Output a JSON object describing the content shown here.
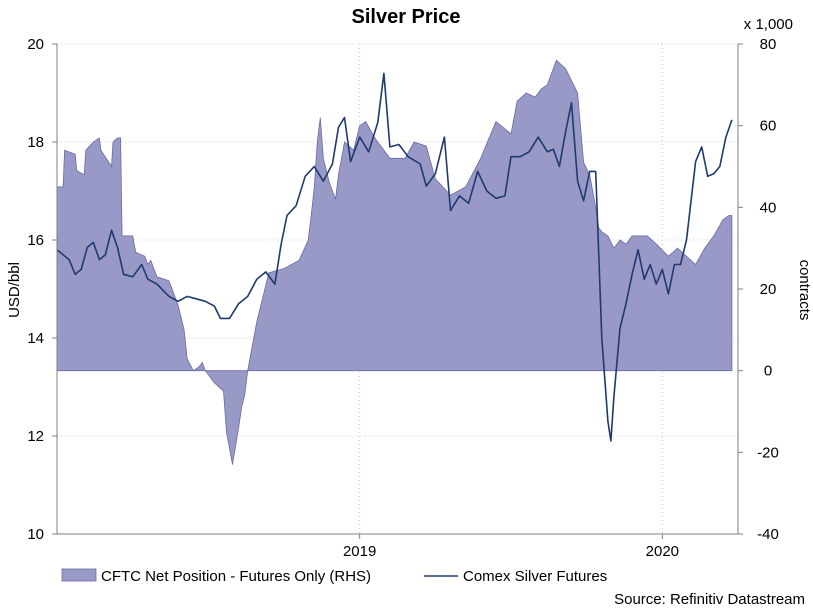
{
  "chart_data": {
    "type": "area+line",
    "title": "Silver Price",
    "left_axis": {
      "label": "USD/bbl",
      "range": [
        10,
        20
      ],
      "ticks": [
        "20",
        "18",
        "16",
        "14",
        "12",
        "10"
      ]
    },
    "right_axis": {
      "label": "contracts",
      "multiplier": "x 1,000",
      "range": [
        -40,
        80
      ],
      "ticks": [
        "80",
        "60",
        "40",
        "20",
        "0",
        "-20",
        "-40"
      ]
    },
    "x_axis": {
      "range": [
        2018.0,
        2020.25
      ],
      "ticks": [
        "2019",
        "2020"
      ]
    },
    "grid": "dotted",
    "source": "Source: Refinitiv Datastream",
    "colors": {
      "area_fill": "#9999c8",
      "area_stroke": "#6a6aa8",
      "line": "#1f3a6e",
      "axis": "#808080",
      "grid": "#c8c8c8"
    },
    "series": [
      {
        "name": "CFTC Net Position - Futures Only (RHS)",
        "axis": "right",
        "kind": "area",
        "points": [
          [
            2018.0,
            45
          ],
          [
            2018.02,
            45
          ],
          [
            2018.025,
            54
          ],
          [
            2018.06,
            53
          ],
          [
            2018.065,
            49
          ],
          [
            2018.09,
            48
          ],
          [
            2018.095,
            54
          ],
          [
            2018.12,
            56
          ],
          [
            2018.14,
            57
          ],
          [
            2018.145,
            54
          ],
          [
            2018.18,
            50
          ],
          [
            2018.185,
            56
          ],
          [
            2018.2,
            57
          ],
          [
            2018.21,
            57
          ],
          [
            2018.215,
            33
          ],
          [
            2018.25,
            33
          ],
          [
            2018.26,
            29
          ],
          [
            2018.29,
            28
          ],
          [
            2018.3,
            26
          ],
          [
            2018.31,
            27
          ],
          [
            2018.33,
            23
          ],
          [
            2018.37,
            22
          ],
          [
            2018.4,
            16
          ],
          [
            2018.42,
            10
          ],
          [
            2018.43,
            3
          ],
          [
            2018.45,
            0
          ],
          [
            2018.47,
            1
          ],
          [
            2018.48,
            2
          ],
          [
            2018.49,
            0
          ],
          [
            2018.52,
            -3
          ],
          [
            2018.55,
            -5
          ],
          [
            2018.56,
            -15
          ],
          [
            2018.58,
            -23
          ],
          [
            2018.6,
            -14
          ],
          [
            2018.61,
            -9
          ],
          [
            2018.62,
            -6
          ],
          [
            2018.63,
            0
          ],
          [
            2018.64,
            4
          ],
          [
            2018.66,
            12
          ],
          [
            2018.7,
            24
          ],
          [
            2018.75,
            25
          ],
          [
            2018.8,
            27
          ],
          [
            2018.83,
            32
          ],
          [
            2018.84,
            38
          ],
          [
            2018.85,
            45
          ],
          [
            2018.86,
            56
          ],
          [
            2018.87,
            62
          ],
          [
            2018.88,
            52
          ],
          [
            2018.9,
            46
          ],
          [
            2018.92,
            42
          ],
          [
            2018.93,
            48
          ],
          [
            2018.95,
            56
          ],
          [
            2018.98,
            54
          ],
          [
            2019.0,
            60
          ],
          [
            2019.02,
            61
          ],
          [
            2019.05,
            57
          ],
          [
            2019.1,
            52
          ],
          [
            2019.15,
            52
          ],
          [
            2019.18,
            56
          ],
          [
            2019.22,
            55
          ],
          [
            2019.25,
            47
          ],
          [
            2019.3,
            43
          ],
          [
            2019.35,
            45
          ],
          [
            2019.4,
            52
          ],
          [
            2019.45,
            61
          ],
          [
            2019.5,
            58
          ],
          [
            2019.52,
            66
          ],
          [
            2019.55,
            68
          ],
          [
            2019.58,
            67
          ],
          [
            2019.6,
            69
          ],
          [
            2019.62,
            70
          ],
          [
            2019.65,
            76
          ],
          [
            2019.68,
            74
          ],
          [
            2019.72,
            68
          ],
          [
            2019.74,
            51
          ],
          [
            2019.76,
            48
          ],
          [
            2019.78,
            40
          ],
          [
            2019.79,
            35
          ],
          [
            2019.8,
            34
          ],
          [
            2019.82,
            33
          ],
          [
            2019.84,
            30
          ],
          [
            2019.86,
            32
          ],
          [
            2019.88,
            31
          ],
          [
            2019.9,
            33
          ],
          [
            2019.95,
            33
          ],
          [
            2019.98,
            31
          ],
          [
            2020.02,
            28
          ],
          [
            2020.05,
            30
          ],
          [
            2020.08,
            28
          ],
          [
            2020.11,
            26
          ],
          [
            2020.14,
            30
          ],
          [
            2020.17,
            33
          ],
          [
            2020.2,
            37
          ],
          [
            2020.22,
            38
          ],
          [
            2020.23,
            38
          ]
        ]
      },
      {
        "name": "Comex Silver Futures",
        "axis": "left",
        "kind": "line",
        "points": [
          [
            2018.0,
            15.8
          ],
          [
            2018.02,
            15.7
          ],
          [
            2018.04,
            15.6
          ],
          [
            2018.06,
            15.3
          ],
          [
            2018.08,
            15.4
          ],
          [
            2018.1,
            15.85
          ],
          [
            2018.12,
            15.95
          ],
          [
            2018.14,
            15.6
          ],
          [
            2018.16,
            15.7
          ],
          [
            2018.18,
            16.2
          ],
          [
            2018.2,
            15.85
          ],
          [
            2018.22,
            15.3
          ],
          [
            2018.25,
            15.25
          ],
          [
            2018.28,
            15.5
          ],
          [
            2018.3,
            15.2
          ],
          [
            2018.33,
            15.1
          ],
          [
            2018.37,
            14.85
          ],
          [
            2018.4,
            14.75
          ],
          [
            2018.43,
            14.85
          ],
          [
            2018.46,
            14.8
          ],
          [
            2018.49,
            14.75
          ],
          [
            2018.52,
            14.65
          ],
          [
            2018.54,
            14.4
          ],
          [
            2018.57,
            14.4
          ],
          [
            2018.6,
            14.7
          ],
          [
            2018.63,
            14.85
          ],
          [
            2018.66,
            15.2
          ],
          [
            2018.69,
            15.35
          ],
          [
            2018.72,
            15.1
          ],
          [
            2018.74,
            15.9
          ],
          [
            2018.76,
            16.5
          ],
          [
            2018.79,
            16.7
          ],
          [
            2018.82,
            17.3
          ],
          [
            2018.85,
            17.5
          ],
          [
            2018.88,
            17.2
          ],
          [
            2018.91,
            17.55
          ],
          [
            2018.93,
            18.3
          ],
          [
            2018.95,
            18.5
          ],
          [
            2018.97,
            17.6
          ],
          [
            2019.0,
            18.1
          ],
          [
            2019.03,
            17.8
          ],
          [
            2019.06,
            18.4
          ],
          [
            2019.08,
            19.4
          ],
          [
            2019.1,
            17.9
          ],
          [
            2019.13,
            17.95
          ],
          [
            2019.16,
            17.7
          ],
          [
            2019.2,
            17.55
          ],
          [
            2019.22,
            17.1
          ],
          [
            2019.25,
            17.35
          ],
          [
            2019.28,
            18.1
          ],
          [
            2019.3,
            16.6
          ],
          [
            2019.33,
            16.9
          ],
          [
            2019.36,
            16.75
          ],
          [
            2019.39,
            17.4
          ],
          [
            2019.42,
            17.0
          ],
          [
            2019.45,
            16.85
          ],
          [
            2019.48,
            16.9
          ],
          [
            2019.5,
            17.7
          ],
          [
            2019.53,
            17.7
          ],
          [
            2019.56,
            17.8
          ],
          [
            2019.59,
            18.1
          ],
          [
            2019.62,
            17.8
          ],
          [
            2019.64,
            17.85
          ],
          [
            2019.66,
            17.5
          ],
          [
            2019.68,
            18.2
          ],
          [
            2019.7,
            18.8
          ],
          [
            2019.72,
            17.2
          ],
          [
            2019.74,
            16.8
          ],
          [
            2019.76,
            17.4
          ],
          [
            2019.78,
            17.4
          ],
          [
            2019.8,
            14.0
          ],
          [
            2019.82,
            12.3
          ],
          [
            2019.83,
            11.9
          ],
          [
            2019.84,
            12.8
          ],
          [
            2019.86,
            14.2
          ],
          [
            2019.88,
            14.7
          ],
          [
            2019.9,
            15.3
          ],
          [
            2019.92,
            15.8
          ],
          [
            2019.94,
            15.2
          ],
          [
            2019.96,
            15.5
          ],
          [
            2019.98,
            15.1
          ],
          [
            2020.0,
            15.4
          ],
          [
            2020.02,
            14.9
          ],
          [
            2020.04,
            15.5
          ],
          [
            2020.06,
            15.5
          ],
          [
            2020.08,
            16.0
          ],
          [
            2020.11,
            17.6
          ],
          [
            2020.13,
            17.9
          ],
          [
            2020.15,
            17.3
          ],
          [
            2020.17,
            17.35
          ],
          [
            2020.19,
            17.5
          ],
          [
            2020.21,
            18.1
          ],
          [
            2020.23,
            18.45
          ]
        ]
      }
    ]
  }
}
